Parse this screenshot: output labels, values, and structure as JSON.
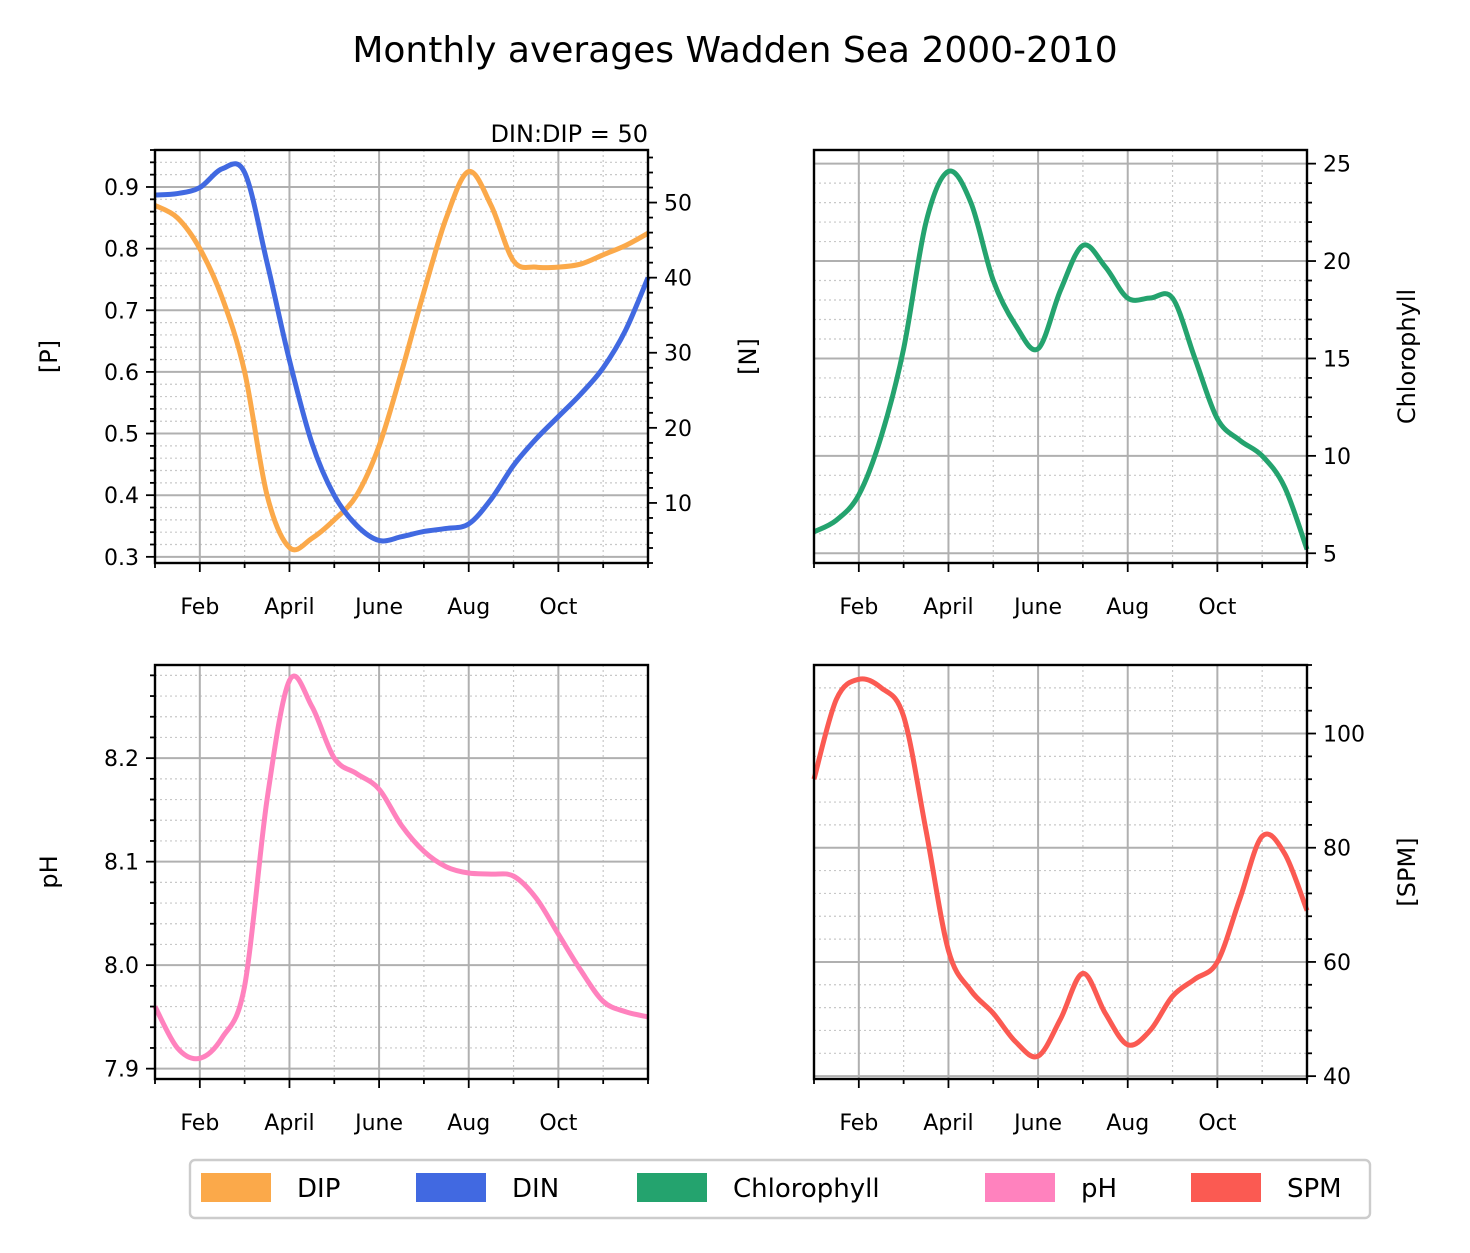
{
  "figure": {
    "title": "Monthly averages Wadden Sea 2000-2010"
  },
  "legend": {
    "items": [
      {
        "label": "DIP",
        "color": "#FBA94A"
      },
      {
        "label": "DIN",
        "color": "#4169E1"
      },
      {
        "label": "Chlorophyll",
        "color": "#24A36E"
      },
      {
        "label": "pH",
        "color": "#FF82BE"
      },
      {
        "label": "SPM",
        "color": "#FB5A52"
      }
    ]
  },
  "chart_data": [
    {
      "type": "line",
      "panel": "top-left",
      "annotation": "DIN:DIP = 50",
      "xlabel": "",
      "x_tick_labels": [
        "Feb",
        "April",
        "June",
        "Aug",
        "Oct"
      ],
      "x_tick_months": [
        2,
        4,
        6,
        8,
        10
      ],
      "xlim": [
        1,
        12
      ],
      "grid": true,
      "ylabel_left": "[P]",
      "ylabel_right": "[N]",
      "ylim_left": [
        0.29,
        0.96
      ],
      "ylim_right": [
        2,
        57
      ],
      "yticks_left": [
        "0.3",
        "0.4",
        "0.5",
        "0.6",
        "0.7",
        "0.8",
        "0.9"
      ],
      "yticks_right": [
        "10",
        "20",
        "30",
        "40",
        "50"
      ],
      "series": [
        {
          "name": "DIP",
          "axis": "left",
          "color": "#FBA94A",
          "x": [
            1,
            1.5,
            2,
            2.5,
            3,
            3.5,
            4,
            4.5,
            5,
            5.5,
            6,
            6.5,
            7,
            7.5,
            8,
            8.5,
            9,
            9.5,
            10,
            10.5,
            11,
            11.5,
            12
          ],
          "y": [
            0.87,
            0.85,
            0.8,
            0.72,
            0.6,
            0.4,
            0.315,
            0.33,
            0.36,
            0.4,
            0.48,
            0.6,
            0.73,
            0.85,
            0.925,
            0.87,
            0.78,
            0.77,
            0.77,
            0.775,
            0.79,
            0.805,
            0.825
          ]
        },
        {
          "name": "DIN",
          "axis": "right",
          "color": "#4169E1",
          "x": [
            1,
            1.5,
            2,
            2.5,
            3,
            3.5,
            4,
            4.5,
            5,
            5.5,
            6,
            6.5,
            7,
            7.5,
            8,
            8.5,
            9,
            9.5,
            10,
            10.5,
            11,
            11.5,
            12
          ],
          "y": [
            51,
            51.2,
            52,
            54.5,
            54,
            42,
            29,
            18,
            11,
            7,
            5,
            5.5,
            6.2,
            6.6,
            7.2,
            10.5,
            15,
            18.5,
            21.5,
            24.5,
            28,
            33,
            40
          ]
        }
      ]
    },
    {
      "type": "line",
      "panel": "top-right",
      "xlabel": "",
      "x_tick_labels": [
        "Feb",
        "April",
        "June",
        "Aug",
        "Oct"
      ],
      "x_tick_months": [
        2,
        4,
        6,
        8,
        10
      ],
      "xlim": [
        1,
        12
      ],
      "grid": true,
      "ylabel": "Chlorophyll",
      "y_axis_side": "right",
      "ylim": [
        4.5,
        25.7
      ],
      "yticks": [
        "5",
        "10",
        "15",
        "20",
        "25"
      ],
      "series": [
        {
          "name": "Chlorophyll",
          "color": "#24A36E",
          "x": [
            1,
            1.5,
            2,
            2.5,
            3,
            3.5,
            4,
            4.5,
            5,
            5.5,
            6,
            6.5,
            7,
            7.5,
            8,
            8.5,
            9,
            9.5,
            10,
            10.5,
            11,
            11.5,
            12
          ],
          "y": [
            6.1,
            6.7,
            8.0,
            11.0,
            15.5,
            22.0,
            24.6,
            23.0,
            19.0,
            16.7,
            15.5,
            18.5,
            20.8,
            19.7,
            18.1,
            18.1,
            18.1,
            15.0,
            11.9,
            10.8,
            10.0,
            8.4,
            5.2
          ]
        }
      ]
    },
    {
      "type": "line",
      "panel": "bottom-left",
      "xlabel": "",
      "x_tick_labels": [
        "Feb",
        "April",
        "June",
        "Aug",
        "Oct"
      ],
      "x_tick_months": [
        2,
        4,
        6,
        8,
        10
      ],
      "xlim": [
        1,
        12
      ],
      "grid": true,
      "ylabel": "pH",
      "y_axis_side": "left",
      "ylim": [
        7.89,
        8.29
      ],
      "yticks": [
        "7.9",
        "8.0",
        "8.1",
        "8.2"
      ],
      "series": [
        {
          "name": "pH",
          "color": "#FF82BE",
          "x": [
            1,
            1.5,
            2,
            2.5,
            3,
            3.5,
            4,
            4.5,
            5,
            5.5,
            6,
            6.5,
            7,
            7.5,
            8,
            8.5,
            9,
            9.5,
            10,
            10.5,
            11,
            11.5,
            12
          ],
          "y": [
            7.96,
            7.92,
            7.91,
            7.93,
            7.98,
            8.16,
            8.275,
            8.25,
            8.2,
            8.185,
            8.17,
            8.135,
            8.11,
            8.095,
            8.089,
            8.088,
            8.086,
            8.065,
            8.03,
            7.995,
            7.965,
            7.955,
            7.95
          ]
        }
      ]
    },
    {
      "type": "line",
      "panel": "bottom-right",
      "xlabel": "",
      "x_tick_labels": [
        "Feb",
        "April",
        "June",
        "Aug",
        "Oct"
      ],
      "x_tick_months": [
        2,
        4,
        6,
        8,
        10
      ],
      "xlim": [
        1,
        12
      ],
      "grid": true,
      "ylabel": "[SPM]",
      "y_axis_side": "right",
      "ylim": [
        39.5,
        112
      ],
      "yticks": [
        "40",
        "60",
        "80",
        "100"
      ],
      "series": [
        {
          "name": "SPM",
          "color": "#FB5A52",
          "x": [
            1,
            1.5,
            2,
            2.5,
            3,
            3.5,
            4,
            4.5,
            5,
            5.5,
            6,
            6.5,
            7,
            7.5,
            8,
            8.5,
            9,
            9.5,
            10,
            10.5,
            11,
            11.5,
            12
          ],
          "y": [
            92,
            106,
            109.5,
            108,
            103,
            83,
            62,
            55,
            51,
            46,
            43.5,
            50,
            58,
            51,
            45.5,
            48,
            54,
            57,
            60,
            71,
            82,
            79,
            69
          ]
        }
      ]
    }
  ]
}
